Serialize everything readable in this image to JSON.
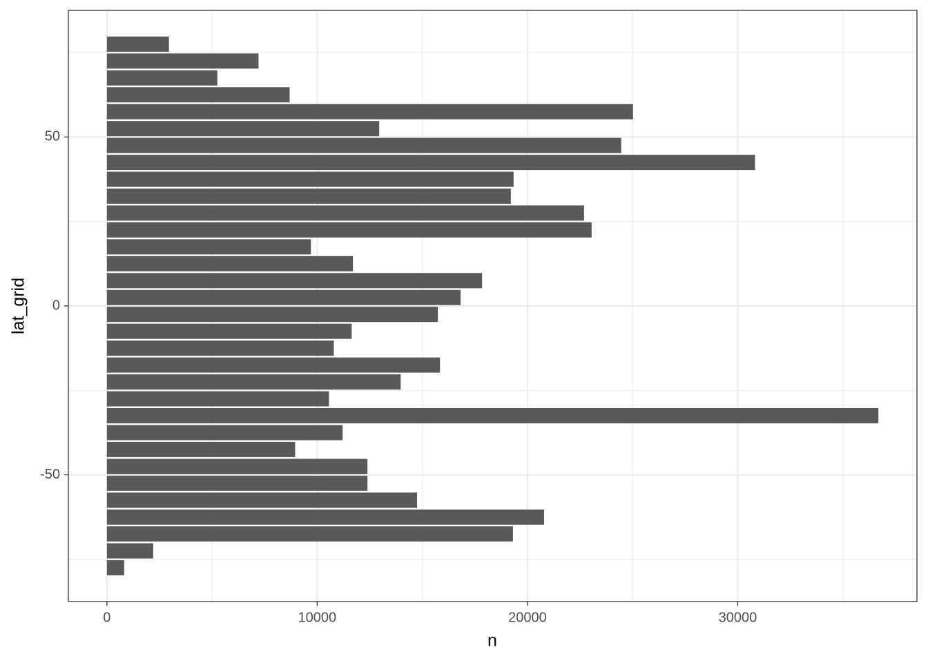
{
  "chart_data": {
    "type": "bar",
    "orientation": "horizontal",
    "x_label": "n",
    "y_label": "lat_grid",
    "y": [
      77.5,
      72.5,
      67.5,
      62.5,
      57.5,
      52.5,
      47.5,
      42.5,
      37.5,
      32.5,
      27.5,
      22.5,
      17.5,
      12.5,
      7.5,
      2.5,
      -2.5,
      -7.5,
      -12.5,
      -17.5,
      -22.5,
      -27.5,
      -32.5,
      -37.5,
      -42.5,
      -47.5,
      -52.5,
      -57.5,
      -62.5,
      -67.5,
      -72.5,
      -77.5
    ],
    "values": [
      2950,
      7210,
      5250,
      8690,
      25020,
      12950,
      24460,
      30820,
      19340,
      19210,
      22690,
      23050,
      9700,
      11700,
      17840,
      16820,
      15740,
      11640,
      10790,
      15840,
      13970,
      10560,
      36690,
      11210,
      8950,
      12390,
      12390,
      14750,
      20790,
      19310,
      2200,
      820
    ],
    "bar_width": 4.5,
    "color": "#595959",
    "xlim": [
      -1834,
      38523
    ],
    "xticks": [
      0,
      10000,
      20000,
      30000
    ],
    "xminor_ticks": [
      5000,
      15000,
      25000,
      35000
    ],
    "ylim": [
      -87.5,
      87.5
    ],
    "yticks": [
      -50,
      0,
      50
    ],
    "yminor_ticks": [
      -75,
      -25,
      25,
      75
    ],
    "grid": true
  }
}
